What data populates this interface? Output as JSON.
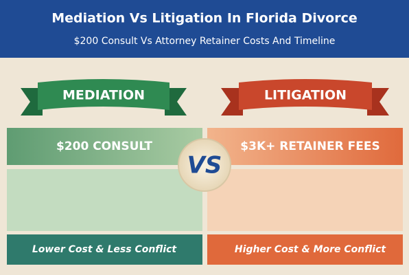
{
  "header": {
    "title": "Mediation Vs Litigation In Florida Divorce",
    "subtitle": "$200 Consult Vs Attorney Retainer Costs And Timeline"
  },
  "left": {
    "banner": "MEDIATION",
    "headline": "$200 CONSULT",
    "footer": "Lower Cost & Less Conflict"
  },
  "vs": "VS",
  "right": {
    "banner": "LITIGATION",
    "headline": "$3K+ RETAINER FEES",
    "footer": "Higher Cost & More Conflict"
  }
}
